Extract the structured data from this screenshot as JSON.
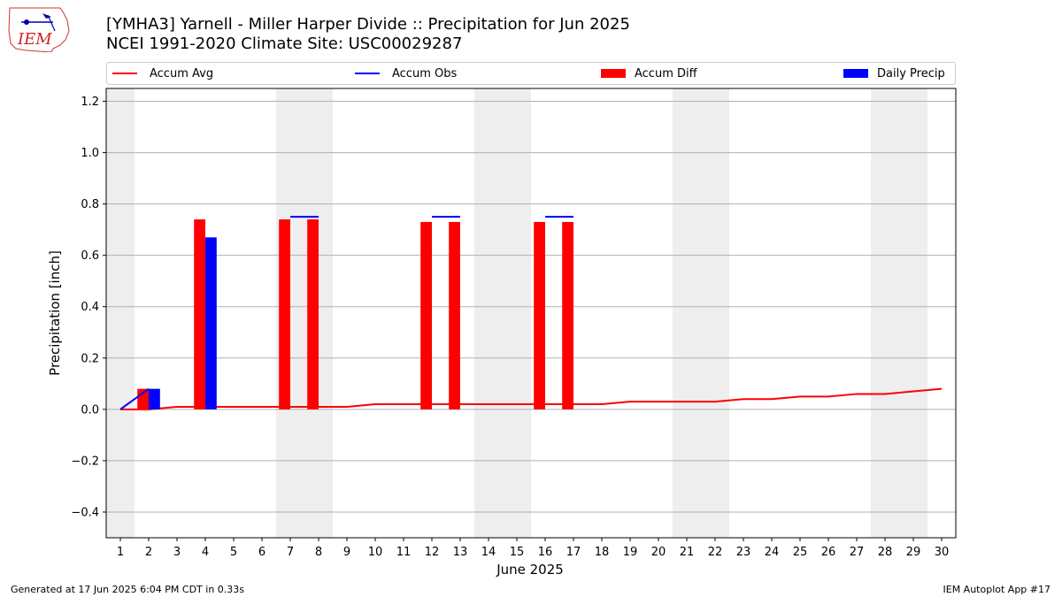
{
  "header": {
    "title_line1": "[YMHA3] Yarnell - Miller Harper Divide :: Precipitation for Jun 2025",
    "title_line2": "NCEI 1991-2020 Climate Site: USC00029287"
  },
  "logo": {
    "text": "IEM"
  },
  "footer": {
    "generated": "Generated at 17 Jun 2025 6:04 PM CDT in 0.33s",
    "app": "IEM Autoplot App #17"
  },
  "colors": {
    "avg": "#ff0000",
    "obs": "#0000ff",
    "diff": "#ff0000",
    "daily": "#0000ff",
    "weekend_band": "#eeeeee",
    "grid": "#b0b0b0"
  },
  "chart_data": {
    "type": "bar",
    "xlabel": "June 2025",
    "ylabel": "Precipitation [inch]",
    "xlim": [
      0.5,
      30.5
    ],
    "ylim": [
      -0.5,
      1.25
    ],
    "yticks": [
      -0.4,
      -0.2,
      0.0,
      0.2,
      0.4,
      0.6,
      0.8,
      1.0,
      1.2
    ],
    "ytick_labels": [
      "−0.4",
      "−0.2",
      "0.0",
      "0.2",
      "0.4",
      "0.6",
      "0.8",
      "1.0",
      "1.2"
    ],
    "days": [
      1,
      2,
      3,
      4,
      5,
      6,
      7,
      8,
      9,
      10,
      11,
      12,
      13,
      14,
      15,
      16,
      17,
      18,
      19,
      20,
      21,
      22,
      23,
      24,
      25,
      26,
      27,
      28,
      29,
      30
    ],
    "grid": true,
    "legend_position": "top",
    "shaded_days": [
      1,
      7,
      8,
      14,
      15,
      21,
      22,
      28,
      29
    ],
    "series": [
      {
        "name": "Accum Avg",
        "kind": "line",
        "values": [
          0.0,
          0.0,
          0.01,
          0.01,
          0.01,
          0.01,
          0.01,
          0.01,
          0.01,
          0.02,
          0.02,
          0.02,
          0.02,
          0.02,
          0.02,
          0.02,
          0.02,
          0.02,
          0.03,
          0.03,
          0.03,
          0.03,
          0.04,
          0.04,
          0.05,
          0.05,
          0.06,
          0.06,
          0.07,
          0.08
        ]
      },
      {
        "name": "Accum Obs",
        "kind": "line",
        "points": [
          [
            1,
            0.0
          ],
          [
            2,
            0.08
          ]
        ],
        "flat_segments": [
          {
            "day": 7,
            "value": 0.75
          },
          {
            "day": 12,
            "value": 0.75
          },
          {
            "day": 16,
            "value": 0.75
          }
        ]
      },
      {
        "name": "Accum Diff",
        "kind": "bar",
        "points": [
          [
            2,
            0.08
          ],
          [
            4,
            0.74
          ],
          [
            7,
            0.74
          ],
          [
            8,
            0.74
          ],
          [
            12,
            0.73
          ],
          [
            13,
            0.73
          ],
          [
            16,
            0.73
          ],
          [
            17,
            0.73
          ]
        ]
      },
      {
        "name": "Daily Precip",
        "kind": "bar",
        "points": [
          [
            2,
            0.08
          ],
          [
            4,
            0.67
          ]
        ]
      }
    ]
  }
}
